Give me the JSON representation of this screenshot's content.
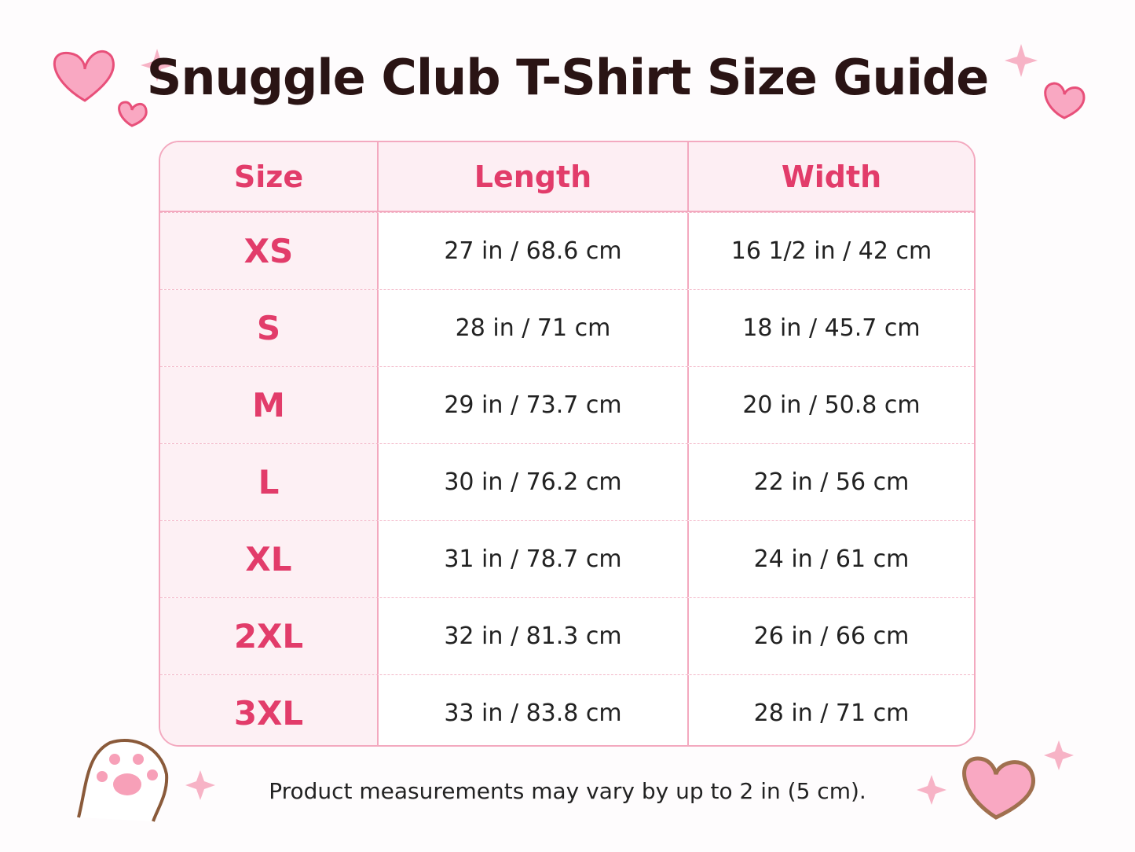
{
  "header": {
    "title": "Snuggle Club T-Shirt Size Guide"
  },
  "table": {
    "columns": [
      "Size",
      "Length",
      "Width"
    ],
    "rows": [
      [
        "XS",
        "27 in / 68.6 cm",
        "16 1/2 in / 42 cm"
      ],
      [
        "S",
        "28 in / 71 cm",
        "18 in / 45.7 cm"
      ],
      [
        "M",
        "29 in / 73.7 cm",
        "20 in / 50.8 cm"
      ],
      [
        "L",
        "30 in / 76.2 cm",
        "22 in / 56 cm"
      ],
      [
        "XL",
        "31 in / 78.7 cm",
        "24 in / 61 cm"
      ],
      [
        "2XL",
        "32 in / 81.3 cm",
        "26 in / 66 cm"
      ],
      [
        "3XL",
        "33 in / 83.8 cm",
        "28 in / 71 cm"
      ]
    ]
  },
  "footer": {
    "note": "Product measurements may vary by up to 2 in (5 cm)."
  }
}
